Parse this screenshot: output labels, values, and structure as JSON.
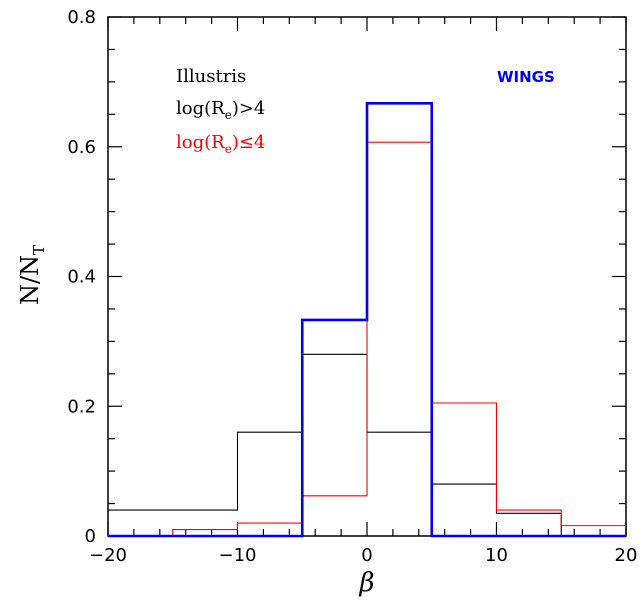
{
  "chart_data": {
    "type": "histogram",
    "xlabel": "β",
    "ylabel": "N/N",
    "ylabel_sub": "T",
    "xlim": [
      -20,
      20
    ],
    "ylim": [
      0,
      0.8
    ],
    "x_ticks": [
      {
        "value": -20,
        "label": "−20"
      },
      {
        "value": -10,
        "label": "−10"
      },
      {
        "value": 0,
        "label": "0"
      },
      {
        "value": 10,
        "label": "10"
      },
      {
        "value": 20,
        "label": "20"
      }
    ],
    "y_ticks": [
      {
        "value": 0,
        "label": "0"
      },
      {
        "value": 0.2,
        "label": "0.2"
      },
      {
        "value": 0.4,
        "label": "0.4"
      },
      {
        "value": 0.6,
        "label": "0.6"
      },
      {
        "value": 0.8,
        "label": "0.8"
      }
    ],
    "bin_edges": [
      -20,
      -15,
      -10,
      -5,
      0,
      5,
      10,
      15,
      20
    ],
    "series": [
      {
        "key": "illustris_large",
        "color": "#000000",
        "counts": [
          0.04,
          0.04,
          0.16,
          0.28,
          0.16,
          0.08,
          0.035,
          0.0
        ]
      },
      {
        "key": "illustris_small",
        "color": "#ff0000",
        "counts": [
          0.0,
          0.01,
          0.02,
          0.062,
          0.607,
          0.205,
          0.04,
          0.016
        ]
      },
      {
        "key": "wings",
        "color": "#0000ff",
        "counts": [
          0.0,
          0.0,
          0.0,
          0.333,
          0.667,
          0.0,
          0.0,
          0.0
        ]
      }
    ],
    "legend": {
      "title": "Illustris",
      "line1_pre": "log(R",
      "line1_sub": "e",
      "line1_post": ")>4",
      "line2_pre": "log(R",
      "line2_sub": "e",
      "line2_post": ")≤4",
      "wings_label": "WINGS"
    }
  }
}
